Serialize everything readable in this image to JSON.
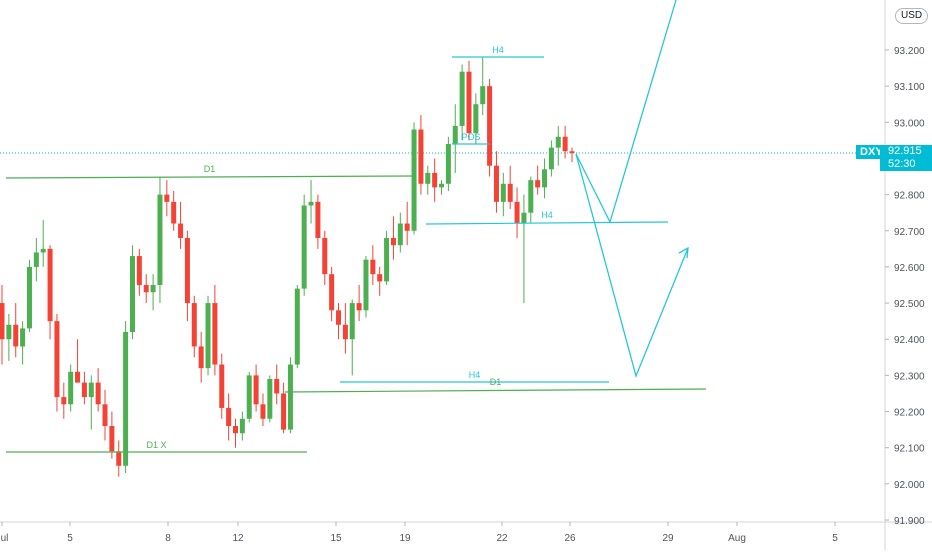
{
  "chart_data": {
    "type": "candlestick",
    "symbol": "DXY",
    "currency": "USD",
    "current_price": "92.915",
    "countdown": "52:30",
    "y_ticks": [
      "93.200",
      "93.100",
      "93.000",
      "92.900",
      "92.800",
      "92.700",
      "92.600",
      "92.500",
      "92.400",
      "92.300",
      "92.200",
      "92.100",
      "92.000",
      "91.900"
    ],
    "x_ticks": [
      "Jul",
      "5",
      "8",
      "12",
      "15",
      "19",
      "22",
      "26",
      "29",
      "Aug",
      "5"
    ],
    "ylim": [
      91.88,
      93.34
    ],
    "candles": [
      [
        92.5,
        92.55,
        92.33,
        92.4
      ],
      [
        92.4,
        92.47,
        92.34,
        92.44
      ],
      [
        92.44,
        92.5,
        92.35,
        92.38
      ],
      [
        92.38,
        92.45,
        92.33,
        92.43
      ],
      [
        92.43,
        92.62,
        92.42,
        92.6
      ],
      [
        92.6,
        92.68,
        92.56,
        92.64
      ],
      [
        92.64,
        92.73,
        92.6,
        92.65
      ],
      [
        92.65,
        92.66,
        92.4,
        92.45
      ],
      [
        92.45,
        92.47,
        92.2,
        92.24
      ],
      [
        92.24,
        92.28,
        92.18,
        92.22
      ],
      [
        92.22,
        92.33,
        92.2,
        92.31
      ],
      [
        92.31,
        92.4,
        92.28,
        92.28
      ],
      [
        92.28,
        92.31,
        92.22,
        92.24
      ],
      [
        92.24,
        92.3,
        92.15,
        92.28
      ],
      [
        92.28,
        92.32,
        92.2,
        92.22
      ],
      [
        92.22,
        92.26,
        92.12,
        92.16
      ],
      [
        92.16,
        92.2,
        92.07,
        92.09
      ],
      [
        92.09,
        92.12,
        92.02,
        92.05
      ],
      [
        92.05,
        92.45,
        92.03,
        92.42
      ],
      [
        92.42,
        92.66,
        92.4,
        92.63
      ],
      [
        92.63,
        92.65,
        92.52,
        92.55
      ],
      [
        92.55,
        92.58,
        92.5,
        92.53
      ],
      [
        92.53,
        92.58,
        92.48,
        92.55
      ],
      [
        92.55,
        92.85,
        92.5,
        92.8
      ],
      [
        92.8,
        92.84,
        92.74,
        92.78
      ],
      [
        92.78,
        92.81,
        92.7,
        92.72
      ],
      [
        92.72,
        92.78,
        92.65,
        92.68
      ],
      [
        92.68,
        92.7,
        92.45,
        92.5
      ],
      [
        92.5,
        92.52,
        92.35,
        92.38
      ],
      [
        92.38,
        92.42,
        92.28,
        92.32
      ],
      [
        92.32,
        92.52,
        92.3,
        92.5
      ],
      [
        92.5,
        92.55,
        92.3,
        92.33
      ],
      [
        92.33,
        92.36,
        92.18,
        92.21
      ],
      [
        92.21,
        92.25,
        92.12,
        92.16
      ],
      [
        92.16,
        92.18,
        92.1,
        92.14
      ],
      [
        92.14,
        92.2,
        92.12,
        92.18
      ],
      [
        92.18,
        92.31,
        92.17,
        92.3
      ],
      [
        92.3,
        92.33,
        92.2,
        92.22
      ],
      [
        92.22,
        92.25,
        92.16,
        92.18
      ],
      [
        92.18,
        92.3,
        92.17,
        92.29
      ],
      [
        92.29,
        92.33,
        92.22,
        92.25
      ],
      [
        92.25,
        92.28,
        92.14,
        92.15
      ],
      [
        92.15,
        92.35,
        92.14,
        92.33
      ],
      [
        92.33,
        92.55,
        92.32,
        92.54
      ],
      [
        92.54,
        92.8,
        92.52,
        92.77
      ],
      [
        92.77,
        92.84,
        92.72,
        92.78
      ],
      [
        92.78,
        92.8,
        92.65,
        92.68
      ],
      [
        92.68,
        92.7,
        92.55,
        92.58
      ],
      [
        92.58,
        92.6,
        92.45,
        92.48
      ],
      [
        92.48,
        92.5,
        92.4,
        92.44
      ],
      [
        92.44,
        92.5,
        92.36,
        92.4
      ],
      [
        92.4,
        92.51,
        92.3,
        92.5
      ],
      [
        92.5,
        92.55,
        92.45,
        92.48
      ],
      [
        92.48,
        92.63,
        92.46,
        92.62
      ],
      [
        92.62,
        92.66,
        92.55,
        92.58
      ],
      [
        92.58,
        92.6,
        92.52,
        92.56
      ],
      [
        92.56,
        92.7,
        92.55,
        92.68
      ],
      [
        92.68,
        92.74,
        92.62,
        92.66
      ],
      [
        92.66,
        92.75,
        92.64,
        92.72
      ],
      [
        92.72,
        92.78,
        92.66,
        92.7
      ],
      [
        92.7,
        93.0,
        92.69,
        92.98
      ],
      [
        92.98,
        93.02,
        92.8,
        92.83
      ],
      [
        92.83,
        92.88,
        92.8,
        92.86
      ],
      [
        92.86,
        92.9,
        92.78,
        92.82
      ],
      [
        92.82,
        92.84,
        92.8,
        92.83
      ],
      [
        92.83,
        92.96,
        92.81,
        92.94
      ],
      [
        92.94,
        93.05,
        92.86,
        92.99
      ],
      [
        92.99,
        93.16,
        92.95,
        93.14
      ],
      [
        93.14,
        93.17,
        92.95,
        92.97
      ],
      [
        92.97,
        93.08,
        92.94,
        93.05
      ],
      [
        93.05,
        93.18,
        93.02,
        93.1
      ],
      [
        93.1,
        93.12,
        92.85,
        92.88
      ],
      [
        92.88,
        92.92,
        92.75,
        92.78
      ],
      [
        92.78,
        92.86,
        92.74,
        92.83
      ],
      [
        92.83,
        92.88,
        92.76,
        92.78
      ],
      [
        92.78,
        92.82,
        92.68,
        92.72
      ],
      [
        92.72,
        92.8,
        92.5,
        92.75
      ],
      [
        92.75,
        92.85,
        92.72,
        92.84
      ],
      [
        92.84,
        92.88,
        92.8,
        92.82
      ],
      [
        92.82,
        92.9,
        92.79,
        92.87
      ],
      [
        92.87,
        92.95,
        92.85,
        92.93
      ],
      [
        92.93,
        92.99,
        92.88,
        92.96
      ],
      [
        92.96,
        92.99,
        92.9,
        92.92
      ],
      [
        92.92,
        92.93,
        92.89,
        92.915
      ]
    ],
    "lines": [
      {
        "label": "D1",
        "color": "#4caf50",
        "from": [
          "Jul",
          92.84
        ],
        "to": [
          "19",
          92.85
        ]
      },
      {
        "label": "H4",
        "color": "#26c6da",
        "from": [
          "19",
          93.18
        ],
        "to": [
          "22",
          93.18
        ]
      },
      {
        "label": "POS",
        "color": "#26c6da",
        "from": [
          "19",
          92.93
        ],
        "to": [
          "22",
          92.93
        ]
      },
      {
        "label": "H4",
        "color": "#26c6da",
        "from": [
          "19",
          92.72
        ],
        "to": [
          "29",
          92.72
        ]
      },
      {
        "label": "H4",
        "color": "#26c6da",
        "from": [
          "15",
          92.28
        ],
        "to": [
          "29",
          92.28
        ]
      },
      {
        "label": "D1",
        "color": "#4caf50",
        "from": [
          "12",
          92.26
        ],
        "to": [
          "29",
          92.27
        ]
      },
      {
        "label": "D1 X",
        "color": "#4caf50",
        "from": [
          "Jul",
          92.09
        ],
        "to": [
          "15",
          92.09
        ]
      }
    ],
    "projections": [
      {
        "color": "#26c6da",
        "points": [
          [
            "26",
            92.92
          ],
          [
            "29",
            92.72
          ],
          [
            "Aug",
            93.35
          ]
        ]
      },
      {
        "color": "#26c6da",
        "points": [
          [
            "26",
            92.92
          ],
          [
            "29",
            92.29
          ],
          [
            "Aug",
            92.65
          ]
        ]
      }
    ]
  }
}
